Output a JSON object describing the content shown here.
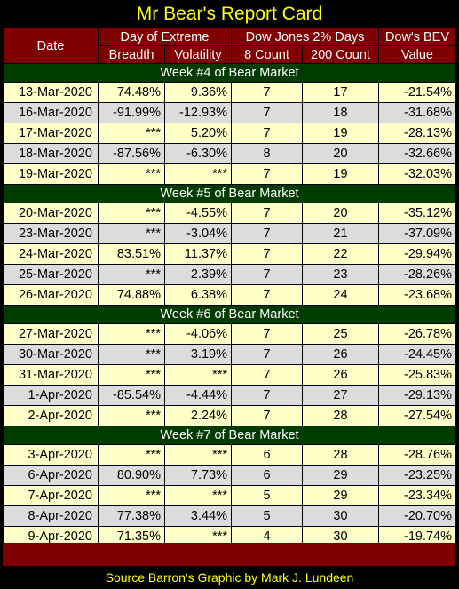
{
  "title": "Mr Bear's Report Card",
  "headers": {
    "date": "Date",
    "day_of_extreme": "Day of Extreme",
    "breadth": "Breadth",
    "volatility": "Volatility",
    "dow_2pct": "Dow Jones 2% Days",
    "count8": "8 Count",
    "count200": "200 Count",
    "bev_line1": "Dow's BEV",
    "bev_line2": "Value"
  },
  "weeks": [
    {
      "label": "Week #4 of Bear Market",
      "rows": [
        {
          "date": "13-Mar-2020",
          "breadth": "74.48%",
          "volatility": "9.36%",
          "c8": "7",
          "c200": "17",
          "bev": "-21.54%"
        },
        {
          "date": "16-Mar-2020",
          "breadth": "-91.99%",
          "volatility": "-12.93%",
          "c8": "7",
          "c200": "18",
          "bev": "-31.68%"
        },
        {
          "date": "17-Mar-2020",
          "breadth": "***",
          "volatility": "5.20%",
          "c8": "7",
          "c200": "19",
          "bev": "-28.13%"
        },
        {
          "date": "18-Mar-2020",
          "breadth": "-87.56%",
          "volatility": "-6.30%",
          "c8": "8",
          "c200": "20",
          "bev": "-32.66%"
        },
        {
          "date": "19-Mar-2020",
          "breadth": "***",
          "volatility": "***",
          "c8": "7",
          "c200": "19",
          "bev": "-32.03%"
        }
      ]
    },
    {
      "label": "Week #5 of Bear Market",
      "rows": [
        {
          "date": "20-Mar-2020",
          "breadth": "***",
          "volatility": "-4.55%",
          "c8": "7",
          "c200": "20",
          "bev": "-35.12%"
        },
        {
          "date": "23-Mar-2020",
          "breadth": "***",
          "volatility": "-3.04%",
          "c8": "7",
          "c200": "21",
          "bev": "-37.09%"
        },
        {
          "date": "24-Mar-2020",
          "breadth": "83.51%",
          "volatility": "11.37%",
          "c8": "7",
          "c200": "22",
          "bev": "-29.94%"
        },
        {
          "date": "25-Mar-2020",
          "breadth": "***",
          "volatility": "2.39%",
          "c8": "7",
          "c200": "23",
          "bev": "-28.26%"
        },
        {
          "date": "26-Mar-2020",
          "breadth": "74.88%",
          "volatility": "6.38%",
          "c8": "7",
          "c200": "24",
          "bev": "-23.68%"
        }
      ]
    },
    {
      "label": "Week #6 of Bear Market",
      "rows": [
        {
          "date": "27-Mar-2020",
          "breadth": "***",
          "volatility": "-4.06%",
          "c8": "7",
          "c200": "25",
          "bev": "-26.78%"
        },
        {
          "date": "30-Mar-2020",
          "breadth": "***",
          "volatility": "3.19%",
          "c8": "7",
          "c200": "26",
          "bev": "-24.45%"
        },
        {
          "date": "31-Mar-2020",
          "breadth": "***",
          "volatility": "***",
          "c8": "7",
          "c200": "26",
          "bev": "-25.83%"
        },
        {
          "date": "1-Apr-2020",
          "breadth": "-85.54%",
          "volatility": "-4.44%",
          "c8": "7",
          "c200": "27",
          "bev": "-29.13%"
        },
        {
          "date": "2-Apr-2020",
          "breadth": "***",
          "volatility": "2.24%",
          "c8": "7",
          "c200": "28",
          "bev": "-27.54%"
        }
      ]
    },
    {
      "label": "Week #7 of Bear Market",
      "rows": [
        {
          "date": "3-Apr-2020",
          "breadth": "***",
          "volatility": "***",
          "c8": "6",
          "c200": "28",
          "bev": "-28.76%"
        },
        {
          "date": "6-Apr-2020",
          "breadth": "80.90%",
          "volatility": "7.73%",
          "c8": "6",
          "c200": "29",
          "bev": "-23.25%"
        },
        {
          "date": "7-Apr-2020",
          "breadth": "***",
          "volatility": "***",
          "c8": "5",
          "c200": "29",
          "bev": "-23.34%"
        },
        {
          "date": "8-Apr-2020",
          "breadth": "77.38%",
          "volatility": "3.44%",
          "c8": "5",
          "c200": "30",
          "bev": "-20.70%"
        },
        {
          "date": "9-Apr-2020",
          "breadth": "71.35%",
          "volatility": "***",
          "c8": "4",
          "c200": "30",
          "bev": "-19.74%"
        }
      ]
    }
  ],
  "footer": "Source Barron's  Graphic by Mark J. Lundeen",
  "colors": {
    "title_text": "#ffff00",
    "header_bg": "#800000",
    "week_bg": "#003b00",
    "row_odd": "#ffffc8",
    "row_even": "#dcdcdc"
  }
}
